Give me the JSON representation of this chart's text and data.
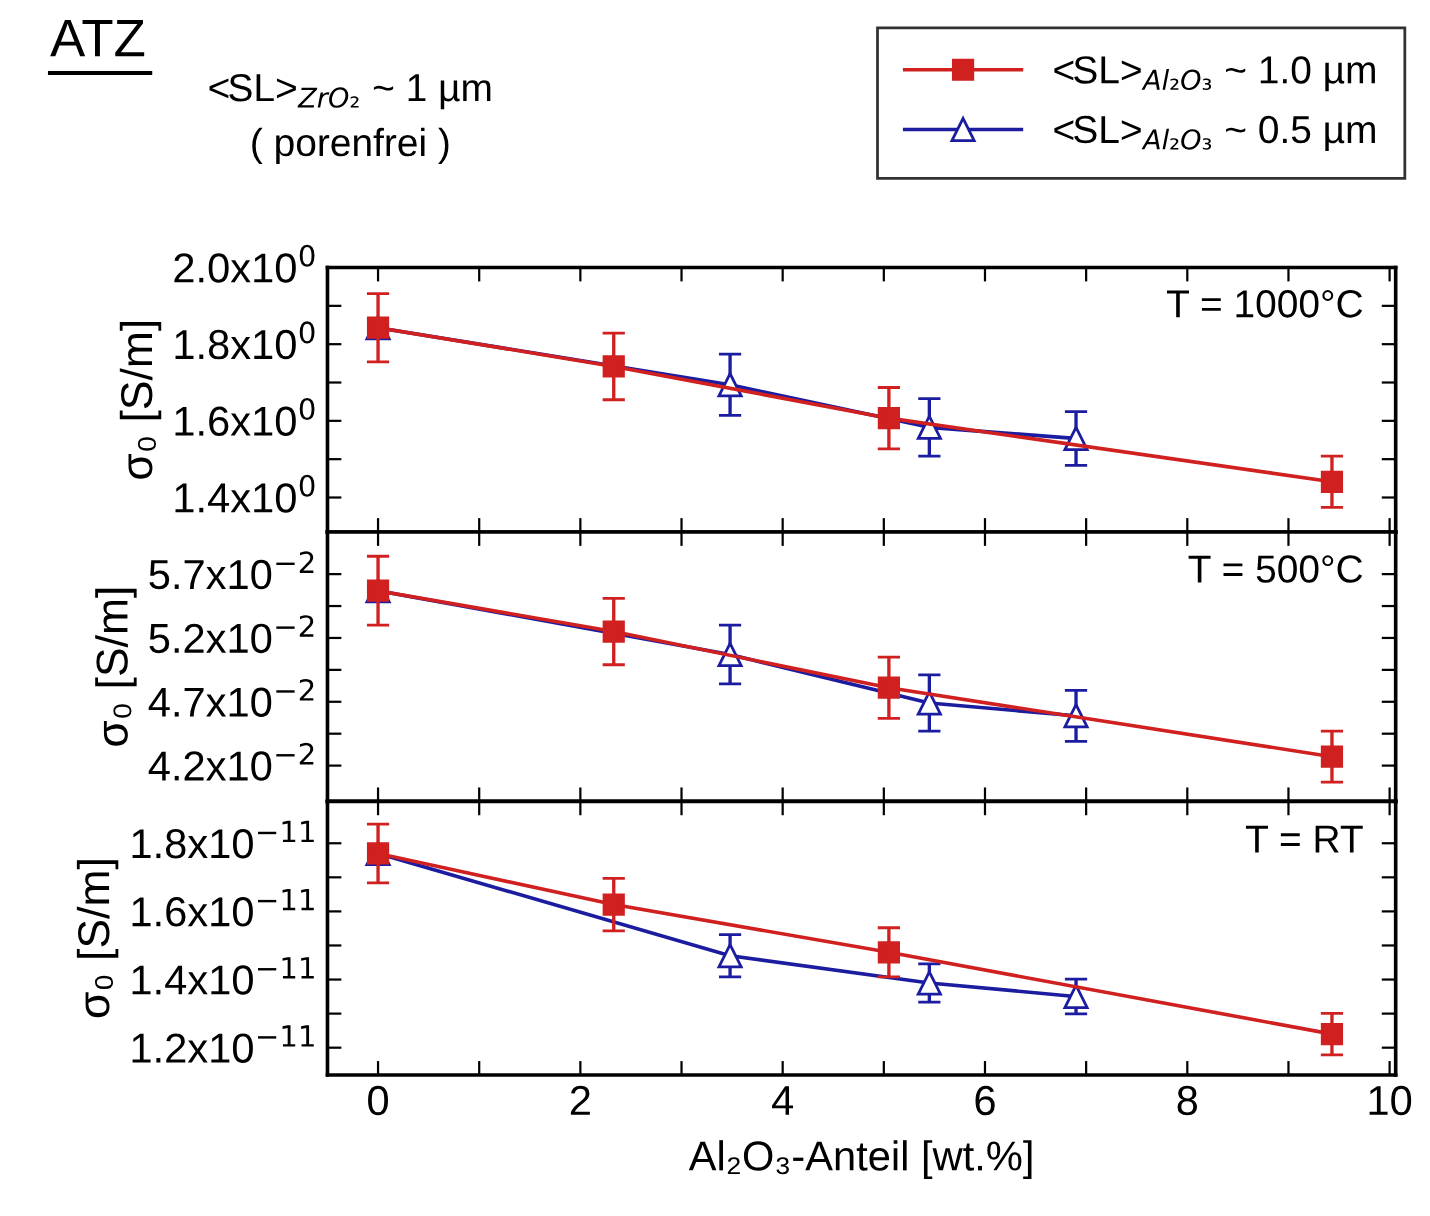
{
  "chart_data": [
    {
      "type": "line",
      "title": "ATZ",
      "ylabel": "σ₀ [S/m]",
      "annotations": [
        "T = 1000°C",
        "<SL>$_{ZrO₂}$ ~ 1 µm",
        "( porenfrei )"
      ],
      "series": [
        {
          "name": "<SL>$_{Al₂O₃}$ ~ 1.0 µm",
          "color": "#d02020",
          "marker": "square",
          "x": [
            0,
            2.33,
            5.05,
            9.43
          ],
          "values": [
            1.843,
            1.742,
            1.607,
            1.441
          ],
          "errors": [
            0.089,
            0.087,
            0.08,
            0.067
          ]
        },
        {
          "name": "<SL>$_{Al₂O₃}$ ~ 0.5 µm",
          "color": "#1c1ca0",
          "marker": "triangle",
          "x": [
            0,
            3.48,
            5.45,
            6.9
          ],
          "values": [
            1.843,
            1.694,
            1.583,
            1.554
          ],
          "errors": [
            null,
            0.08,
            0.075,
            0.07
          ]
        }
      ],
      "legend": "top right",
      "line_style": "solid",
      "xlim": [
        -0.5,
        10.06
      ],
      "xticks": [
        0,
        {
          "value": 1,
          "label": null
        },
        2,
        {
          "value": 3,
          "label": null
        },
        4,
        {
          "value": 5,
          "label": null
        },
        6,
        {
          "value": 7,
          "label": null
        },
        8,
        {
          "value": 9,
          "label": null
        },
        10
      ],
      "ylim": [
        1.31,
        2.0
      ],
      "yticks": [
        {
          "value": 1.4,
          "label": "1.4x10$^{0}$"
        },
        {
          "value": 1.5,
          "label": null
        },
        {
          "value": 1.6,
          "label": "1.6x10$^{0}$"
        },
        {
          "value": 1.7,
          "label": null
        },
        {
          "value": 1.8,
          "label": "1.8x10$^{0}$"
        },
        {
          "value": 1.9,
          "label": null
        },
        {
          "value": 2.0,
          "label": "2.0x10$^{0}$"
        }
      ],
      "tick_labels": "y"
    },
    {
      "type": "line",
      "ylabel": "σ₀ [S/m]",
      "annotations": [
        "T = 500°C"
      ],
      "series": [
        {
          "color": "#d02020",
          "marker": "square",
          "x": [
            0,
            2.33,
            5.05,
            9.43
          ],
          "values": [
            0.0557,
            0.0525,
            0.0481,
            0.0427
          ],
          "errors": [
            0.0027,
            0.0026,
            0.0024,
            0.002
          ]
        },
        {
          "color": "#1c1ca0",
          "marker": "triangle",
          "x": [
            0,
            3.48,
            5.45,
            6.9
          ],
          "values": [
            0.0557,
            0.0507,
            0.0469,
            0.0459
          ],
          "errors": [
            null,
            0.0023,
            0.0022,
            0.002
          ]
        }
      ],
      "line_style": "solid",
      "xlim": [
        -0.5,
        10.06
      ],
      "xticks": [
        0,
        {
          "value": 1,
          "label": null
        },
        2,
        {
          "value": 3,
          "label": null
        },
        4,
        {
          "value": 5,
          "label": null
        },
        6,
        {
          "value": 7,
          "label": null
        },
        8,
        {
          "value": 9,
          "label": null
        },
        10
      ],
      "ylim": [
        0.0392,
        0.0603
      ],
      "yticks": [
        {
          "value": 0.042,
          "label": "4.2x10$^{−2}$"
        },
        {
          "value": 0.0445,
          "label": null
        },
        {
          "value": 0.047,
          "label": "4.7x10$^{−2}$"
        },
        {
          "value": 0.0495,
          "label": null
        },
        {
          "value": 0.052,
          "label": "5.2x10$^{−2}$"
        },
        {
          "value": 0.0545,
          "label": null
        },
        {
          "value": 0.057,
          "label": "5.7x10$^{−2}$"
        }
      ],
      "tick_labels": "y"
    },
    {
      "type": "line",
      "ylabel": "σ₀ [S/m]",
      "xlabel": "Al₂O₃-Anteil [wt.%]",
      "annotations": [
        "T = RT"
      ],
      "series": [
        {
          "color": "#d02020",
          "marker": "square",
          "x": [
            0,
            2.33,
            5.05,
            9.43
          ],
          "values": [
            1.77e-11,
            1.62e-11,
            1.48e-11,
            1.24e-11
          ],
          "errors": [
            8.6e-13,
            7.7e-13,
            7.2e-13,
            6.1e-13
          ]
        },
        {
          "color": "#1c1ca0",
          "marker": "triangle",
          "x": [
            0,
            3.48,
            5.45,
            6.9
          ],
          "values": [
            1.77e-11,
            1.47e-11,
            1.39e-11,
            1.35e-11
          ],
          "errors": [
            null,
            6.2e-13,
            5.6e-13,
            5.1e-13
          ]
        }
      ],
      "line_style": "solid",
      "xlim": [
        -0.5,
        10.06
      ],
      "xticks": [
        0,
        {
          "value": 1,
          "label": null
        },
        2,
        {
          "value": 3,
          "label": null
        },
        4,
        {
          "value": 5,
          "label": null
        },
        6,
        {
          "value": 7,
          "label": null
        },
        8,
        {
          "value": 9,
          "label": null
        },
        10
      ],
      "ylim": [
        1.12e-11,
        1.923e-11
      ],
      "yticks": [
        {
          "value": 1.2e-11,
          "label": "1.2x10$^{−11}$"
        },
        {
          "value": 1.3e-11,
          "label": null
        },
        {
          "value": 1.4e-11,
          "label": "1.4x10$^{−11}$"
        },
        {
          "value": 1.5e-11,
          "label": null
        },
        {
          "value": 1.6e-11,
          "label": "1.6x10$^{−11}$"
        },
        {
          "value": 1.7e-11,
          "label": null
        },
        {
          "value": 1.8e-11,
          "label": "1.8x10$^{−11}$"
        }
      ]
    }
  ]
}
